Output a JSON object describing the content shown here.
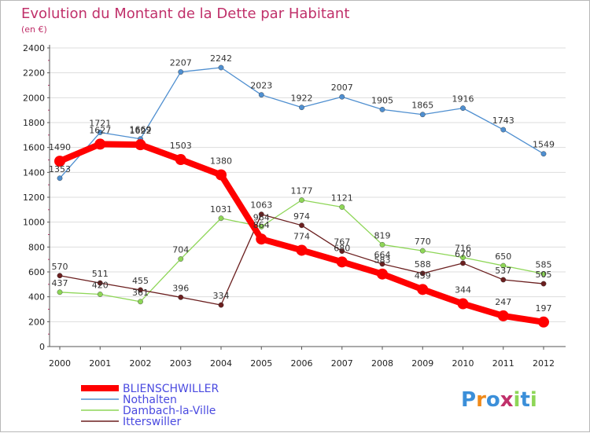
{
  "chart_data": {
    "type": "line",
    "title": "Evolution du Montant de la Dette par Habitant",
    "subtitle": "(en €)",
    "xlabel": "",
    "ylabel": "",
    "x": [
      "2000",
      "2001",
      "2002",
      "2003",
      "2004",
      "2005",
      "2006",
      "2007",
      "2008",
      "2009",
      "2010",
      "2011",
      "2012"
    ],
    "ylim": [
      0,
      2400
    ],
    "yticks": [
      "0",
      "200",
      "400",
      "600",
      "800",
      "1000",
      "1200",
      "1400",
      "1600",
      "1800",
      "2000",
      "2200",
      "2400"
    ],
    "grid": "horizontal",
    "legend_position": "bottom-left",
    "series": [
      {
        "name": "Nothalten",
        "color": "#4f8fd0",
        "values": [
          1353,
          1721,
          1669,
          2207,
          2242,
          2023,
          1922,
          2007,
          1905,
          1865,
          1916,
          1743,
          1549
        ]
      },
      {
        "name": "Dambach-la-Ville",
        "color": "#8ed657",
        "values": [
          437,
          420,
          361,
          704,
          1031,
          964,
          1177,
          1121,
          819,
          770,
          716,
          650,
          585
        ]
      },
      {
        "name": "Itterswiller",
        "color": "#6b1f1f",
        "values": [
          570,
          511,
          455,
          396,
          334,
          1063,
          974,
          767,
          664,
          588,
          670,
          537,
          505
        ]
      },
      {
        "name": "BLIENSCHWILLER",
        "color": "#ff0000",
        "values": [
          1490,
          1627,
          1622,
          1503,
          1380,
          864,
          774,
          680,
          583,
          459,
          344,
          247,
          197
        ]
      }
    ],
    "legend": [
      {
        "name": "BLIENSCHWILLER",
        "color": "#ff0000"
      },
      {
        "name": "Nothalten",
        "color": "#4f8fd0"
      },
      {
        "name": "Dambach-la-Ville",
        "color": "#8ed657"
      },
      {
        "name": "Itterswiller",
        "color": "#6b1f1f"
      }
    ]
  },
  "logo": {
    "text": "Proxiti"
  }
}
